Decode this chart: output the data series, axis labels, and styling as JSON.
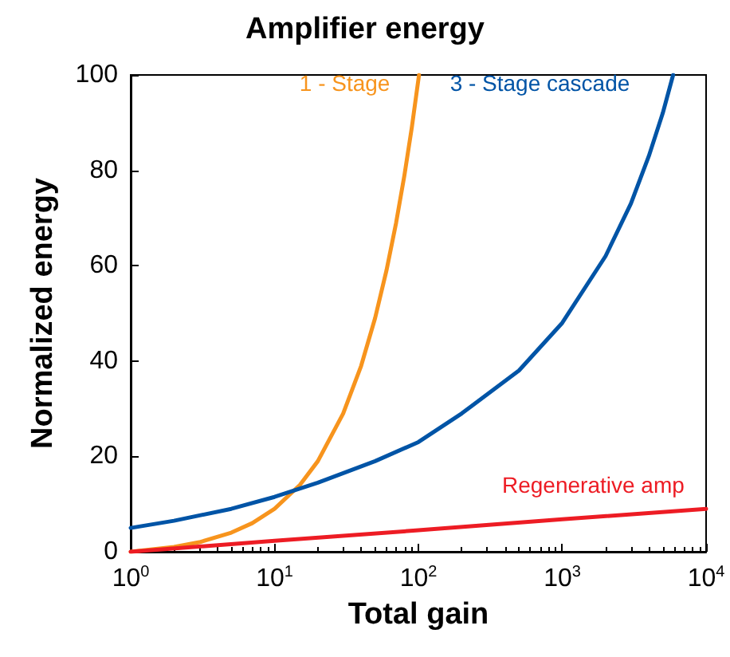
{
  "chart_data": {
    "type": "line",
    "title": "Amplifier energy",
    "xlabel": "Total gain",
    "ylabel": "Normalized energy",
    "log": "x",
    "grid": false,
    "legend": false,
    "marker": "none",
    "line_style": "solid",
    "xlim": [
      1,
      10000
    ],
    "xticks": [
      {
        "value": 1,
        "label": "10$^{0}$"
      },
      {
        "value": 10,
        "label": "10$^{1}$"
      },
      {
        "value": 100,
        "label": "10$^{2}$"
      },
      {
        "value": 1000,
        "label": "10$^{3}$"
      },
      {
        "value": 10000,
        "label": "10$^{4}$"
      }
    ],
    "ylim": [
      0,
      100
    ],
    "yticks": [
      0,
      20,
      40,
      60,
      80,
      100
    ],
    "series": [
      {
        "name": "1 - Stage",
        "color": "#f7941d",
        "x": [
          1,
          2,
          3,
          5,
          7,
          10,
          15,
          20,
          30,
          40,
          50,
          60,
          70,
          80,
          90,
          101
        ],
        "values": [
          0,
          1,
          2,
          4,
          6,
          9,
          14,
          19,
          29,
          39,
          49,
          59,
          69,
          79,
          89,
          100
        ]
      },
      {
        "name": "3 - Stage cascade",
        "color": "#0054a6",
        "x": [
          1,
          2,
          5,
          10,
          20,
          50,
          100,
          200,
          500,
          1000,
          2000,
          3000,
          4000,
          5000,
          5900
        ],
        "values": [
          5,
          6.5,
          9,
          11.5,
          14.5,
          19,
          23,
          29,
          38,
          48,
          62,
          73,
          83,
          92,
          100
        ]
      },
      {
        "name": "Regenerative amp",
        "color": "#ed1c24",
        "x": [
          1,
          10,
          100,
          1000,
          10000
        ],
        "values": [
          0,
          2.3,
          4.5,
          6.8,
          9
        ]
      }
    ]
  }
}
